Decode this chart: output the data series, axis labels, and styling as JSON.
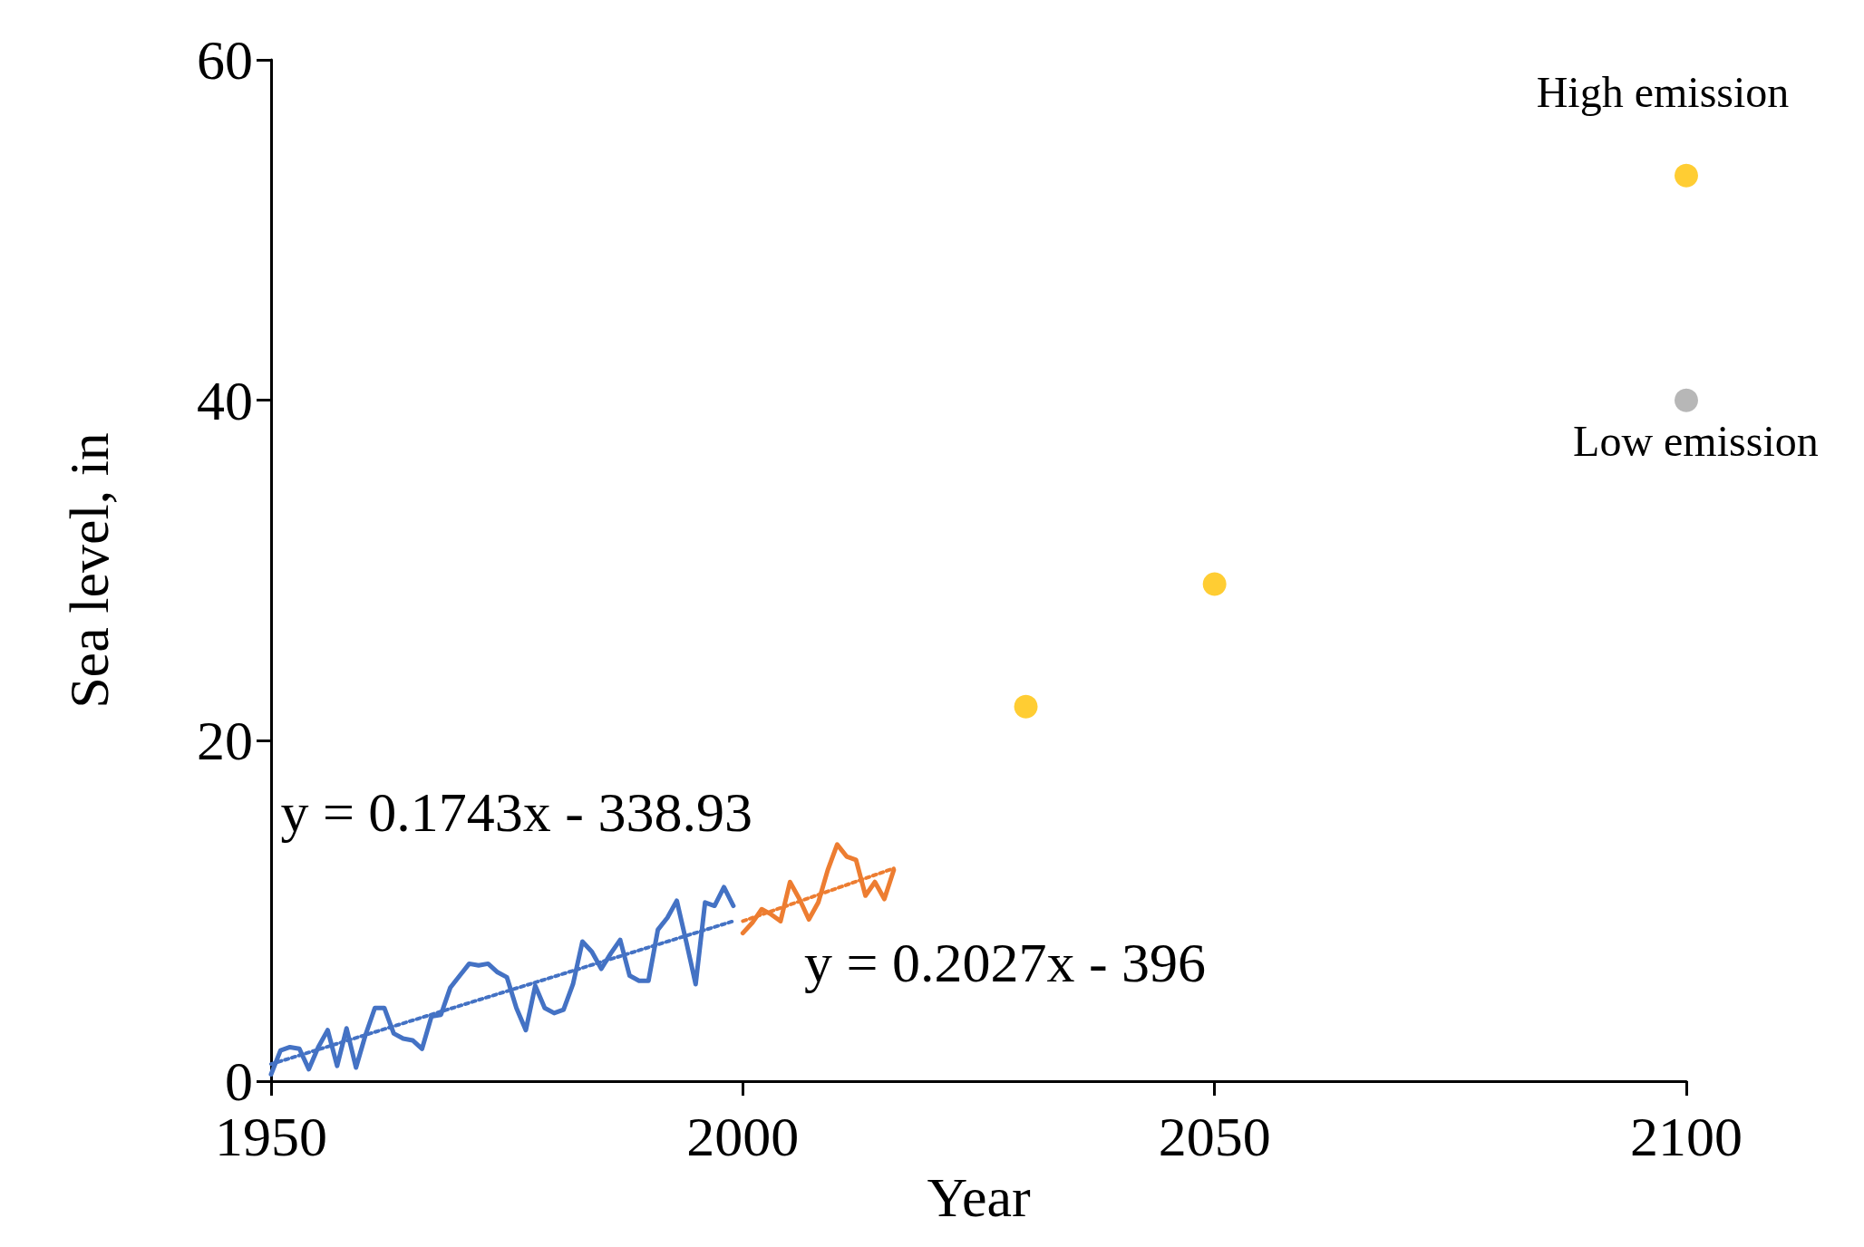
{
  "chart_data": {
    "type": "line",
    "xlabel": "Year",
    "ylabel": "Sea level, in",
    "xlim": [
      1950,
      2100
    ],
    "xticks": [
      1950,
      2000,
      2050,
      2100
    ],
    "ylim": [
      0,
      60
    ],
    "yticks": [
      0,
      20,
      40,
      60
    ],
    "grid": false,
    "marker": "none",
    "line_style": "solid",
    "series": [
      {
        "color": "#4472c4",
        "x": [
          1950,
          1951,
          1952,
          1953,
          1954,
          1955,
          1956,
          1957,
          1958,
          1959,
          1960,
          1961,
          1962,
          1963,
          1964,
          1965,
          1966,
          1967,
          1968,
          1969,
          1970,
          1971,
          1972,
          1973,
          1974,
          1975,
          1976,
          1977,
          1978,
          1979,
          1980,
          1981,
          1982,
          1983,
          1984,
          1985,
          1986,
          1987,
          1988,
          1989,
          1990,
          1991,
          1992,
          1993,
          1994,
          1995,
          1996,
          1997,
          1998,
          1999
        ],
        "values": [
          0.4,
          1.8,
          2.0,
          1.9,
          0.7,
          2.0,
          3.0,
          0.9,
          3.1,
          0.8,
          2.7,
          4.3,
          4.3,
          2.8,
          2.5,
          2.4,
          1.9,
          3.8,
          3.9,
          5.5,
          6.2,
          6.9,
          6.8,
          6.9,
          6.4,
          6.1,
          4.3,
          3.0,
          5.6,
          4.3,
          4.0,
          4.2,
          5.7,
          8.2,
          7.6,
          6.6,
          7.5,
          8.3,
          6.2,
          5.9,
          5.9,
          8.9,
          9.6,
          10.6,
          8.2,
          5.7,
          10.5,
          10.3,
          11.4,
          10.3
        ]
      },
      {
        "color": "#ed7d31",
        "x": [
          2000,
          2001,
          2002,
          2003,
          2004,
          2005,
          2006,
          2007,
          2008,
          2009,
          2010,
          2011,
          2012,
          2013,
          2014,
          2015,
          2016
        ],
        "values": [
          8.7,
          9.3,
          10.1,
          9.8,
          9.4,
          11.7,
          10.7,
          9.5,
          10.5,
          12.4,
          13.9,
          13.2,
          13.0,
          10.9,
          11.7,
          10.7,
          12.4
        ]
      },
      {
        "color": "#4472c4",
        "line_style": "dotted",
        "x": [
          1950,
          1999
        ],
        "values": [
          1.0,
          9.4
        ]
      },
      {
        "color": "#ed7d31",
        "line_style": "dotted",
        "x": [
          2000,
          2016
        ],
        "values": [
          9.4,
          12.5
        ]
      },
      {
        "type": "scatter",
        "color": "#ffc000",
        "marker": "circle",
        "x": [
          2030,
          2050,
          2100
        ],
        "values": [
          22.0,
          29.2,
          53.2
        ]
      },
      {
        "type": "scatter",
        "color": "#a5a5a5",
        "marker": "circle",
        "x": [
          2100
        ],
        "values": [
          40
        ]
      }
    ],
    "annotations": [
      "y = 0.1743x - 338.93",
      "y = 0.2027x - 396",
      "High emission",
      "Low emission"
    ]
  }
}
